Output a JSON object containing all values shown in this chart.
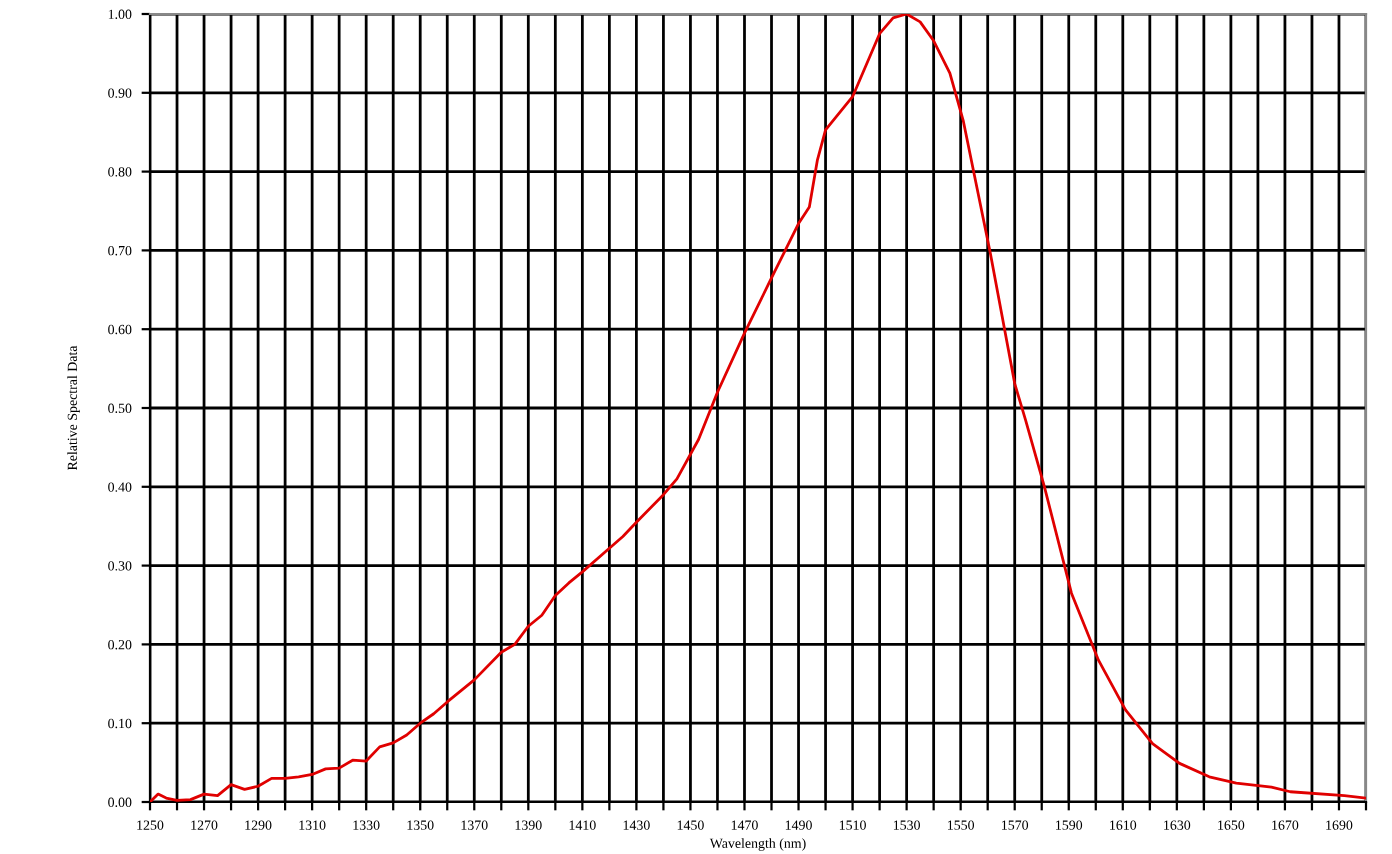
{
  "chart_data": {
    "type": "line",
    "xlabel": "Wavelength (nm)",
    "ylabel": "Relative Spectral Data",
    "x": [
      1250,
      1253,
      1256,
      1260,
      1265,
      1270,
      1275,
      1280,
      1285,
      1290,
      1295,
      1300,
      1305,
      1310,
      1315,
      1320,
      1325,
      1330,
      1335,
      1340,
      1345,
      1350,
      1355,
      1360,
      1370,
      1380,
      1385,
      1390,
      1395,
      1400,
      1405,
      1410,
      1420,
      1425,
      1430,
      1440,
      1445,
      1453,
      1460,
      1470,
      1480,
      1490,
      1494,
      1497,
      1500,
      1510,
      1520,
      1525,
      1530,
      1535,
      1540,
      1546,
      1551,
      1561,
      1570,
      1574,
      1581,
      1591,
      1601,
      1611,
      1621,
      1631,
      1642,
      1652,
      1665,
      1672,
      1692,
      1700
    ],
    "series": [
      {
        "color": "#e00000",
        "values": [
          0.0,
          0.01,
          0.005,
          0.002,
          0.003,
          0.01,
          0.008,
          0.022,
          0.016,
          0.02,
          0.03,
          0.03,
          0.032,
          0.035,
          0.042,
          0.043,
          0.053,
          0.052,
          0.07,
          0.075,
          0.085,
          0.1,
          0.112,
          0.127,
          0.155,
          0.19,
          0.2,
          0.223,
          0.237,
          0.262,
          0.278,
          0.292,
          0.322,
          0.337,
          0.355,
          0.39,
          0.41,
          0.46,
          0.52,
          0.595,
          0.665,
          0.734,
          0.755,
          0.815,
          0.853,
          0.895,
          0.975,
          0.995,
          1.0,
          0.99,
          0.966,
          0.925,
          0.864,
          0.696,
          0.531,
          0.485,
          0.4,
          0.265,
          0.18,
          0.117,
          0.074,
          0.049,
          0.032,
          0.024,
          0.019,
          0.013,
          0.008,
          0.005
        ]
      }
    ],
    "xlim": [
      1250,
      1700
    ],
    "xticks": [
      1250,
      {
        "value": 1260,
        "label": null
      },
      1270,
      {
        "value": 1280,
        "label": null
      },
      1290,
      {
        "value": 1300,
        "label": null
      },
      1310,
      {
        "value": 1320,
        "label": null
      },
      1330,
      {
        "value": 1340,
        "label": null
      },
      1350,
      {
        "value": 1360,
        "label": null
      },
      1370,
      {
        "value": 1380,
        "label": null
      },
      1390,
      {
        "value": 1400,
        "label": null
      },
      1410,
      {
        "value": 1420,
        "label": null
      },
      1430,
      {
        "value": 1440,
        "label": null
      },
      1450,
      {
        "value": 1460,
        "label": null
      },
      1470,
      {
        "value": 1480,
        "label": null
      },
      1490,
      {
        "value": 1500,
        "label": null
      },
      1510,
      {
        "value": 1520,
        "label": null
      },
      1530,
      {
        "value": 1540,
        "label": null
      },
      1550,
      {
        "value": 1560,
        "label": null
      },
      1570,
      {
        "value": 1580,
        "label": null
      },
      1590,
      {
        "value": 1600,
        "label": null
      },
      1610,
      {
        "value": 1620,
        "label": null
      },
      1630,
      {
        "value": 1640,
        "label": null
      },
      1650,
      {
        "value": 1660,
        "label": null
      },
      1670,
      {
        "value": 1680,
        "label": null
      },
      1690,
      {
        "value": 1700,
        "label": null
      }
    ],
    "ylim": [
      0,
      1
    ],
    "yticks": [
      {
        "value": 0,
        "label": "0.00"
      },
      {
        "value": 0.1,
        "label": "0.10"
      },
      {
        "value": 0.2,
        "label": "0.20"
      },
      {
        "value": 0.3,
        "label": "0.30"
      },
      {
        "value": 0.4,
        "label": "0.40"
      },
      {
        "value": 0.5,
        "label": "0.50"
      },
      {
        "value": 0.6,
        "label": "0.60"
      },
      {
        "value": 0.7,
        "label": "0.70"
      },
      {
        "value": 0.8,
        "label": "0.80"
      },
      {
        "value": 0.9,
        "label": "0.90"
      },
      {
        "value": 1,
        "label": "1.00"
      }
    ],
    "grid": true,
    "marker": "none",
    "line_style": "solid"
  }
}
